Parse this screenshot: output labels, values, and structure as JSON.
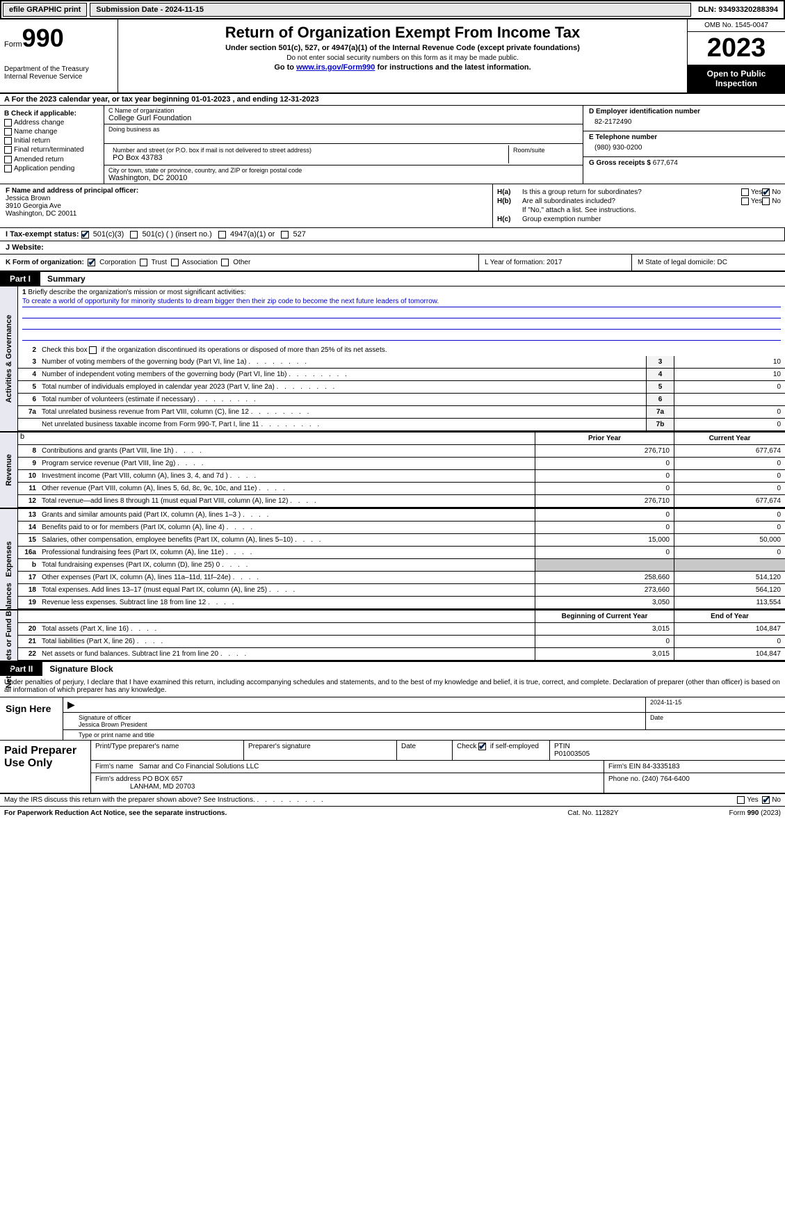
{
  "topbar": {
    "efile": "efile GRAPHIC print",
    "submission": "Submission Date - 2024-11-15",
    "dln": "DLN: 93493320288394"
  },
  "header": {
    "form_word": "Form",
    "form_num": "990",
    "title": "Return of Organization Exempt From Income Tax",
    "sub1": "Under section 501(c), 527, or 4947(a)(1) of the Internal Revenue Code (except private foundations)",
    "sub2": "Do not enter social security numbers on this form as it may be made public.",
    "sub3_pre": "Go to ",
    "sub3_link": "www.irs.gov/Form990",
    "sub3_post": " for instructions and the latest information.",
    "dept": "Department of the Treasury\nInternal Revenue Service",
    "omb": "OMB No. 1545-0047",
    "year": "2023",
    "public": "Open to Public Inspection"
  },
  "row_a": "A For the 2023 calendar year, or tax year beginning 01-01-2023   , and ending 12-31-2023",
  "col_b": {
    "hdr": "B Check if applicable:",
    "items": [
      "Address change",
      "Name change",
      "Initial return",
      "Final return/terminated",
      "Amended return",
      "Application pending"
    ]
  },
  "col_c": {
    "name_lbl": "C Name of organization",
    "name": "College Gurl Foundation",
    "dba_lbl": "Doing business as",
    "dba": "",
    "addr_lbl": "Number and street (or P.O. box if mail is not delivered to street address)",
    "addr": "PO Box 43783",
    "room_lbl": "Room/suite",
    "city_lbl": "City or town, state or province, country, and ZIP or foreign postal code",
    "city": "Washington, DC  20010"
  },
  "col_d": {
    "ein_lbl": "D Employer identification number",
    "ein": "82-2172490",
    "phone_lbl": "E Telephone number",
    "phone": "(980) 930-0200",
    "gross_lbl": "G Gross receipts $",
    "gross": "677,674"
  },
  "row_f": {
    "lbl": "F  Name and address of principal officer:",
    "name": "Jessica Brown",
    "addr1": "3910 Georgia Ave",
    "addr2": "Washington, DC  20011"
  },
  "row_h": {
    "ha_lbl": "H(a)",
    "ha_txt": " Is this a group return for subordinates?",
    "ha_yn": [
      "Yes",
      "No"
    ],
    "hb_lbl": "H(b)",
    "hb_txt": " Are all subordinates included?",
    "hb_note": "If \"No,\" attach a list. See instructions.",
    "hc_lbl": "H(c)",
    "hc_txt": " Group exemption number"
  },
  "row_i": {
    "lbl": "I  Tax-exempt status:",
    "opts": [
      "501(c)(3)",
      "501(c) (  ) (insert no.)",
      "4947(a)(1) or",
      "527"
    ]
  },
  "row_j": {
    "lbl": "J  Website: "
  },
  "row_k": {
    "k": "K Form of organization:",
    "opts": [
      "Corporation",
      "Trust",
      "Association",
      "Other"
    ],
    "l": "L Year of formation: 2017",
    "m": "M State of legal domicile: DC"
  },
  "part1": {
    "tag": "Part I",
    "title": "Summary"
  },
  "mission": {
    "num": "1",
    "lbl": "Briefly describe the organization's mission or most significant activities:",
    "text": "To create a world of opportunity for minority students to dream bigger then their zip code to become the next future leaders of tomorrow."
  },
  "gov": {
    "l2": {
      "num": "2",
      "pre": "Check this box ",
      "post": " if the organization discontinued its operations or disposed of more than 25% of its net assets."
    },
    "rows": [
      {
        "n": "3",
        "t": "Number of voting members of the governing body (Part VI, line 1a)",
        "bn": "3",
        "v": "10"
      },
      {
        "n": "4",
        "t": "Number of independent voting members of the governing body (Part VI, line 1b)",
        "bn": "4",
        "v": "10"
      },
      {
        "n": "5",
        "t": "Total number of individuals employed in calendar year 2023 (Part V, line 2a)",
        "bn": "5",
        "v": "0"
      },
      {
        "n": "6",
        "t": "Total number of volunteers (estimate if necessary)",
        "bn": "6",
        "v": ""
      },
      {
        "n": "7a",
        "t": "Total unrelated business revenue from Part VIII, column (C), line 12",
        "bn": "7a",
        "v": "0"
      },
      {
        "n": "",
        "t": "Net unrelated business taxable income from Form 990-T, Part I, line 11",
        "bn": "7b",
        "v": "0"
      }
    ]
  },
  "rev": {
    "hdr": {
      "py": "Prior Year",
      "cy": "Current Year"
    },
    "rows": [
      {
        "n": "8",
        "t": "Contributions and grants (Part VIII, line 1h)",
        "py": "276,710",
        "cy": "677,674"
      },
      {
        "n": "9",
        "t": "Program service revenue (Part VIII, line 2g)",
        "py": "0",
        "cy": "0"
      },
      {
        "n": "10",
        "t": "Investment income (Part VIII, column (A), lines 3, 4, and 7d )",
        "py": "0",
        "cy": "0"
      },
      {
        "n": "11",
        "t": "Other revenue (Part VIII, column (A), lines 5, 6d, 8c, 9c, 10c, and 11e)",
        "py": "0",
        "cy": "0"
      },
      {
        "n": "12",
        "t": "Total revenue—add lines 8 through 11 (must equal Part VIII, column (A), line 12)",
        "py": "276,710",
        "cy": "677,674"
      }
    ]
  },
  "exp": {
    "rows": [
      {
        "n": "13",
        "t": "Grants and similar amounts paid (Part IX, column (A), lines 1–3 )",
        "py": "0",
        "cy": "0"
      },
      {
        "n": "14",
        "t": "Benefits paid to or for members (Part IX, column (A), line 4)",
        "py": "0",
        "cy": "0"
      },
      {
        "n": "15",
        "t": "Salaries, other compensation, employee benefits (Part IX, column (A), lines 5–10)",
        "py": "15,000",
        "cy": "50,000"
      },
      {
        "n": "16a",
        "t": "Professional fundraising fees (Part IX, column (A), line 11e)",
        "py": "0",
        "cy": "0"
      },
      {
        "n": "b",
        "t": "Total fundraising expenses (Part IX, column (D), line 25) 0",
        "py": "GREY",
        "cy": "GREY"
      },
      {
        "n": "17",
        "t": "Other expenses (Part IX, column (A), lines 11a–11d, 11f–24e)",
        "py": "258,660",
        "cy": "514,120"
      },
      {
        "n": "18",
        "t": "Total expenses. Add lines 13–17 (must equal Part IX, column (A), line 25)",
        "py": "273,660",
        "cy": "564,120"
      },
      {
        "n": "19",
        "t": "Revenue less expenses. Subtract line 18 from line 12",
        "py": "3,050",
        "cy": "113,554"
      }
    ]
  },
  "net": {
    "hdr": {
      "b": "Beginning of Current Year",
      "e": "End of Year"
    },
    "rows": [
      {
        "n": "20",
        "t": "Total assets (Part X, line 16)",
        "py": "3,015",
        "cy": "104,847"
      },
      {
        "n": "21",
        "t": "Total liabilities (Part X, line 26)",
        "py": "0",
        "cy": "0"
      },
      {
        "n": "22",
        "t": "Net assets or fund balances. Subtract line 21 from line 20",
        "py": "3,015",
        "cy": "104,847"
      }
    ]
  },
  "part2": {
    "tag": "Part II",
    "title": "Signature Block"
  },
  "decl": "Under penalties of perjury, I declare that I have examined this return, including accompanying schedules and statements, and to the best of my knowledge and belief, it is true, correct, and complete. Declaration of preparer (other than officer) is based on all information of which preparer has any knowledge.",
  "sign": {
    "lbl": "Sign Here",
    "sig_lbl": "Signature of officer",
    "date_lbl": "Date",
    "date": "2024-11-15",
    "name": "Jessica Brown President",
    "name_lbl": "Type or print name and title"
  },
  "prep": {
    "lbl": "Paid Preparer Use Only",
    "h": {
      "p1": "Print/Type preparer's name",
      "p2": "Preparer's signature",
      "p3": "Date",
      "p4_pre": "Check",
      "p4_post": "if self-employed",
      "p5": "PTIN",
      "ptin": "P01003505"
    },
    "firm_lbl": "Firm's name",
    "firm": "Samar and Co Financial Solutions LLC",
    "ein_lbl": "Firm's EIN",
    "ein": "84-3335183",
    "addr_lbl": "Firm's address",
    "addr1": "PO BOX 657",
    "addr2": "LANHAM, MD  20703",
    "phone_lbl": "Phone no.",
    "phone": "(240) 764-6400"
  },
  "discuss": {
    "txt": "May the IRS discuss this return with the preparer shown above? See Instructions.",
    "yes": "Yes",
    "no": "No"
  },
  "footer": {
    "l": "For Paperwork Reduction Act Notice, see the separate instructions.",
    "c": "Cat. No. 11282Y",
    "r": "Form 990 (2023)"
  },
  "side": {
    "gov": "Activities & Governance",
    "rev": "Revenue",
    "exp": "Expenses",
    "net": "Net Assets or Fund Balances"
  }
}
